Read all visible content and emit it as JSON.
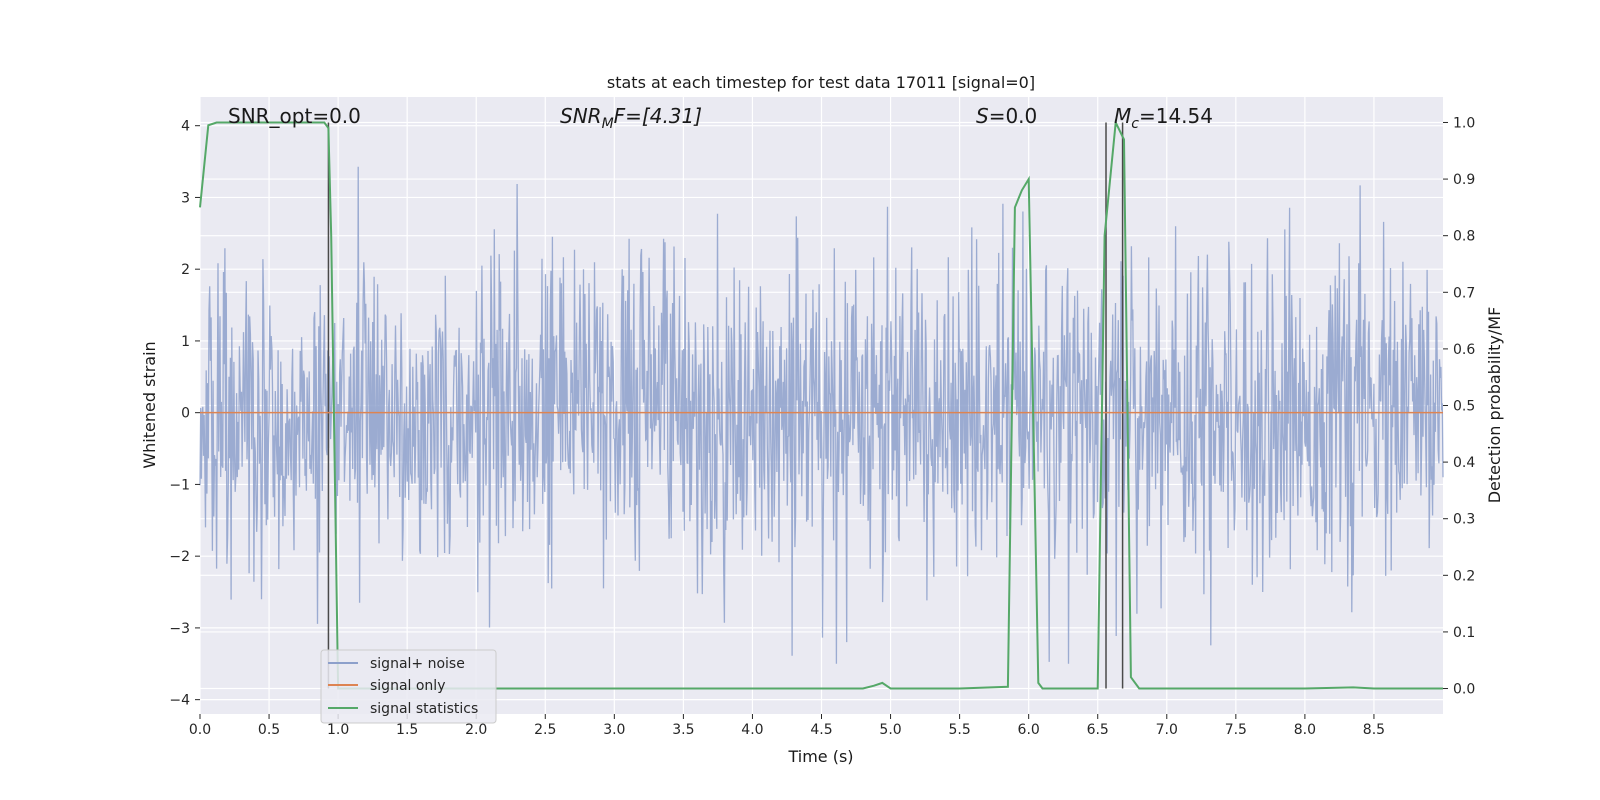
{
  "chart_data": {
    "type": "line",
    "title": "stats at each timestep for test data 17011 [signal=0]",
    "xlabel": "Time (s)",
    "ylabel": "Whitened strain",
    "y2label": "Detection probability/MF",
    "xlim": [
      0.0,
      9.0
    ],
    "ylim": [
      -4.2,
      4.4
    ],
    "y2lim": [
      -0.045,
      1.045
    ],
    "x_ticks": [
      "0.0",
      "0.5",
      "1.0",
      "1.5",
      "2.0",
      "2.5",
      "3.0",
      "3.5",
      "4.0",
      "4.5",
      "5.0",
      "5.5",
      "6.0",
      "6.5",
      "7.0",
      "7.5",
      "8.0",
      "8.5"
    ],
    "y_ticks": [
      "4",
      "3",
      "2",
      "1",
      "0",
      "−1",
      "−2",
      "−3",
      "−4"
    ],
    "y2_ticks": [
      "1.0",
      "0.9",
      "0.8",
      "0.7",
      "0.6",
      "0.5",
      "0.4",
      "0.3",
      "0.2",
      "0.1",
      "0.0"
    ],
    "grid": true,
    "legend_position": "lower-left",
    "annotations": {
      "snr_opt": "SNR_opt=0.0",
      "snr_mf_prefix": "SNR",
      "snr_mf_sub": "M",
      "snr_mf_suffix": "F=[4.31]",
      "s_var": "S",
      "s_value": "=0.0",
      "mc_var": "M",
      "mc_sub": "c",
      "mc_value": "=14.54"
    },
    "series": [
      {
        "name": "signal+ noise",
        "color": "#8da0cb",
        "axis": "left",
        "description_range": [
          -3.5,
          3.7
        ],
        "sample_count": 1800
      },
      {
        "name": "signal only",
        "color": "#dd8452",
        "axis": "left",
        "x": [
          0.0,
          9.0
        ],
        "y": [
          0.0,
          0.0
        ]
      },
      {
        "name": "signal statistics",
        "color": "#55a868",
        "axis": "right",
        "x": [
          0.0,
          0.06,
          0.12,
          0.2,
          0.3,
          0.4,
          0.5,
          0.6,
          0.7,
          0.8,
          0.9,
          0.93,
          0.95,
          1.0,
          1.05,
          1.2,
          1.5,
          2.0,
          2.5,
          3.0,
          3.5,
          4.0,
          4.5,
          4.8,
          4.88,
          4.94,
          5.0,
          5.1,
          5.5,
          5.85,
          5.9,
          5.95,
          6.0,
          6.07,
          6.1,
          6.2,
          6.3,
          6.4,
          6.5,
          6.55,
          6.63,
          6.69,
          6.74,
          6.8,
          7.0,
          7.5,
          8.0,
          8.35,
          8.5,
          9.0
        ],
        "y": [
          0.85,
          0.995,
          1.0,
          1.0,
          1.0,
          1.0,
          1.0,
          1.0,
          1.0,
          1.0,
          1.0,
          0.99,
          0.8,
          0.0,
          0.0,
          0.0,
          0.0,
          0.0,
          0.0,
          0.0,
          0.0,
          0.0,
          0.0,
          0.0,
          0.005,
          0.01,
          0.0,
          0.0,
          0.0,
          0.003,
          0.85,
          0.88,
          0.9,
          0.01,
          0.0,
          0.0,
          0.0,
          0.0,
          0.0,
          0.8,
          1.0,
          0.97,
          0.02,
          0.0,
          0.0,
          0.0,
          0.0,
          0.002,
          0.0,
          0.0
        ]
      }
    ],
    "vertical_lines": [
      0.93,
      6.56,
      6.68
    ]
  }
}
